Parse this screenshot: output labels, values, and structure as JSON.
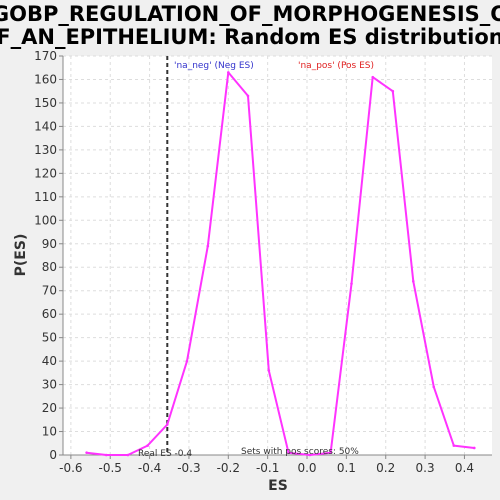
{
  "chart_data": {
    "type": "line",
    "title_lines": [
      "GOBP_REGULATION_OF_MORPHOGENESIS_O",
      "F_AN_EPITHELIUM: Random ES distribution"
    ],
    "xlabel": "ES",
    "ylabel": "P(ES)",
    "xlim": [
      -0.62,
      0.47
    ],
    "ylim": [
      0,
      170
    ],
    "x_ticks": [
      -0.6,
      -0.5,
      -0.4,
      -0.3,
      -0.2,
      -0.1,
      0.0,
      0.1,
      0.2,
      0.3,
      0.4
    ],
    "x_tick_labels": [
      "-0.6",
      "-0.5",
      "-0.4",
      "-0.3",
      "-0.2",
      "-0.1",
      "0.0",
      "0.1",
      "0.2",
      "0.3",
      "0.4"
    ],
    "y_ticks": [
      0,
      10,
      20,
      30,
      40,
      50,
      60,
      70,
      80,
      90,
      100,
      110,
      120,
      130,
      140,
      150,
      160,
      170
    ],
    "y_tick_labels": [
      "0",
      "10",
      "20",
      "30",
      "40",
      "50",
      "60",
      "70",
      "80",
      "90",
      "100",
      "110",
      "120",
      "130",
      "140",
      "150",
      "160",
      "170"
    ],
    "grid": true,
    "series": [
      {
        "color": "#ff33ff",
        "x": [
          -0.56,
          -0.51,
          -0.455,
          -0.405,
          -0.355,
          -0.305,
          -0.252,
          -0.2,
          -0.15,
          -0.097,
          -0.047,
          0.007,
          0.06,
          0.113,
          0.167,
          0.218,
          0.27,
          0.322,
          0.373,
          0.425
        ],
        "y": [
          1,
          0,
          0,
          4,
          13,
          40,
          89,
          163,
          153,
          36,
          1,
          0,
          1,
          73,
          161,
          155,
          74,
          29,
          4,
          3
        ]
      }
    ],
    "real_es": -0.355,
    "real_es_label": "Real ES -0.4",
    "legend": {
      "neg": {
        "label": "'na_neg' (Neg ES)",
        "color": "#3333cc"
      },
      "pos": {
        "label": "'na_pos' (Pos ES)",
        "color": "#e02020"
      }
    },
    "annotation": "Sets with pos scores: 50%"
  }
}
